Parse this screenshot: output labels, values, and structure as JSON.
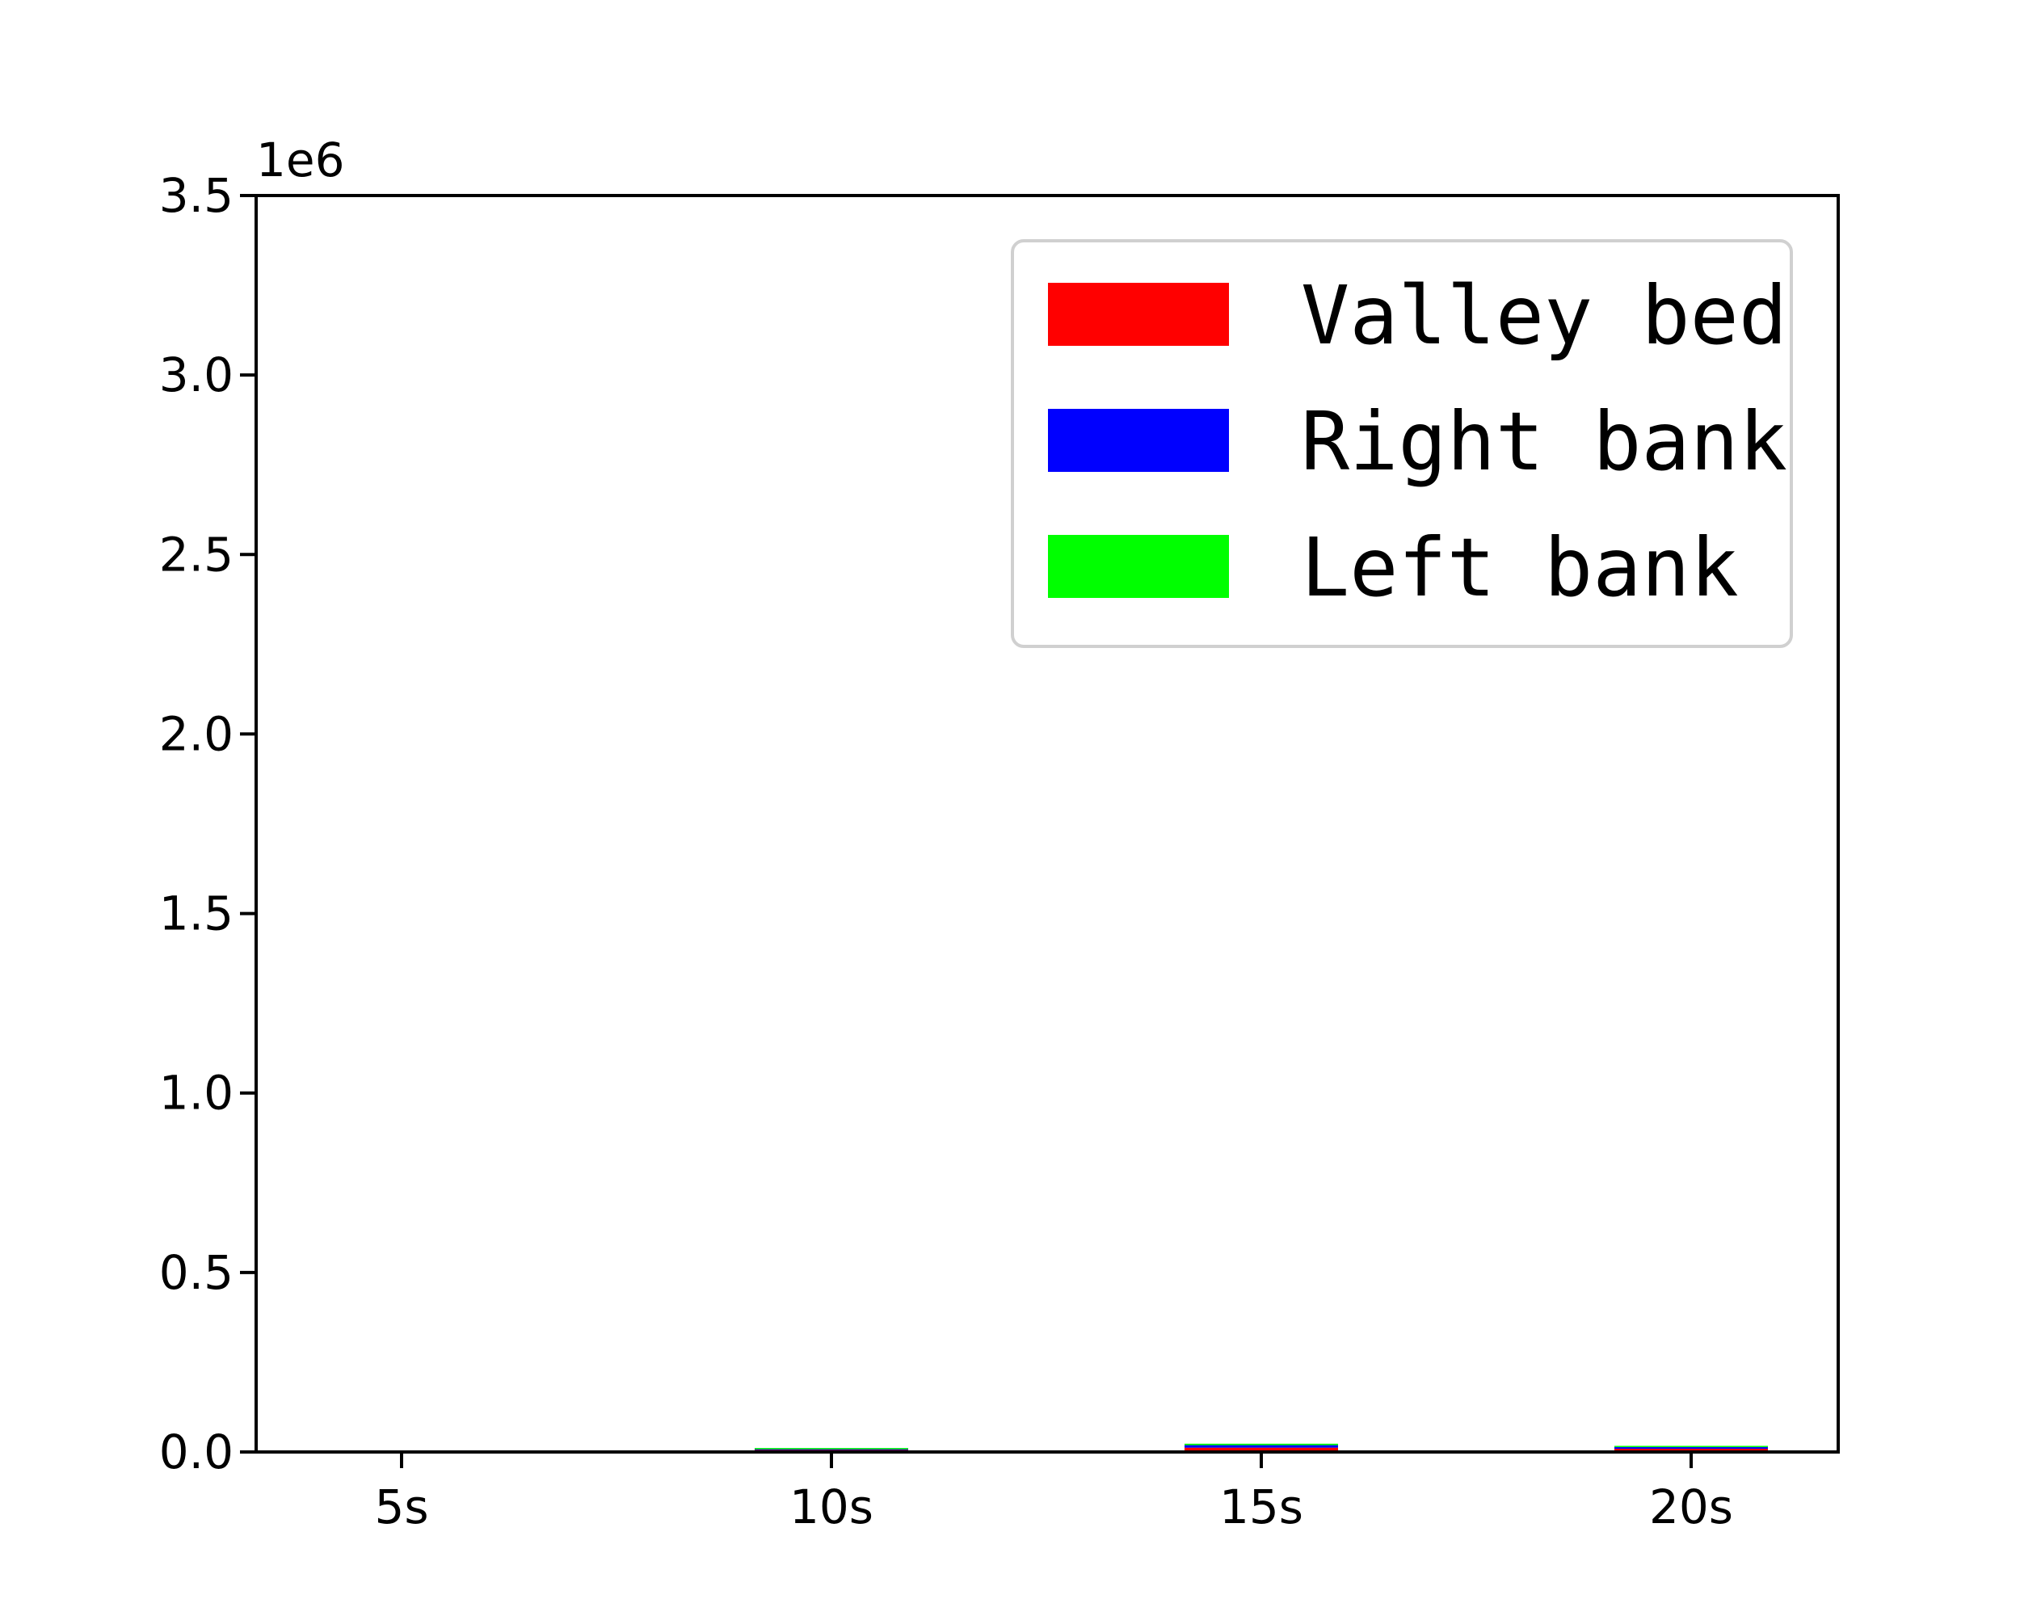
{
  "chart_data": {
    "type": "bar",
    "categories": [
      "5s",
      "10s",
      "15s",
      "20s"
    ],
    "series": [
      {
        "name": "Valley bed",
        "color": "#ff0000",
        "values": [
          500,
          6000,
          12000,
          9000
        ]
      },
      {
        "name": "Right bank",
        "color": "#0000ff",
        "values": [
          300,
          3000,
          7000,
          5000
        ]
      },
      {
        "name": "Left bank",
        "color": "#00ff00",
        "values": [
          200,
          2000,
          4000,
          3000
        ]
      }
    ],
    "stacked": true,
    "ylim": [
      0,
      3500000
    ],
    "yticks": [
      "0.0",
      "0.5",
      "1.0",
      "1.5",
      "2.0",
      "2.5",
      "3.0",
      "3.5"
    ],
    "y_offset_label": "1e6",
    "grid": false,
    "legend_position": "top-right"
  }
}
